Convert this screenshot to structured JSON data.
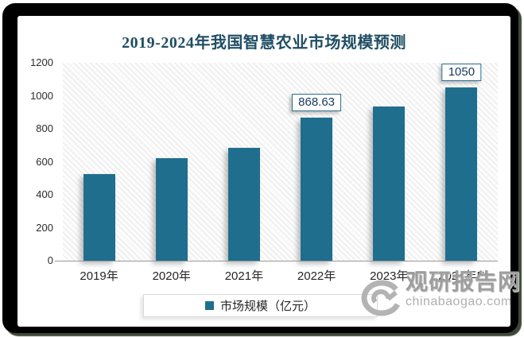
{
  "title": "2019-2024年我国智慧农业市场规模预测",
  "colors": {
    "bar": "#1f6e8e",
    "title_text": "#204e63",
    "data_label_text": "#17375e",
    "data_label_border": "#2a6d8e",
    "axis_line": "#9a9a9a",
    "watermark_gray": "#9e9e9e"
  },
  "legend": {
    "label": "市场规模（亿元）"
  },
  "watermark": {
    "name": "观研报告网",
    "site": "chinabaogao.com",
    "logo": "swirl-icon"
  },
  "chart_data": {
    "type": "bar",
    "title": "2019-2024年我国智慧农业市场规模预测",
    "categories": [
      "2019年",
      "2020年",
      "2021年",
      "2022年",
      "2023年",
      "2024年E"
    ],
    "series": [
      {
        "name": "市场规模（亿元）",
        "values": [
          525,
          622,
          686,
          868.63,
          935,
          1050
        ]
      }
    ],
    "data_labels": [
      null,
      null,
      null,
      "868.63",
      null,
      "1050"
    ],
    "xlabel": "",
    "ylabel": "",
    "ylim": [
      0,
      1200
    ],
    "yticks": [
      0,
      200,
      400,
      600,
      800,
      1000,
      1200
    ],
    "grid": false,
    "legend_position": "bottom",
    "plot_background": "diagonal-hatch"
  }
}
